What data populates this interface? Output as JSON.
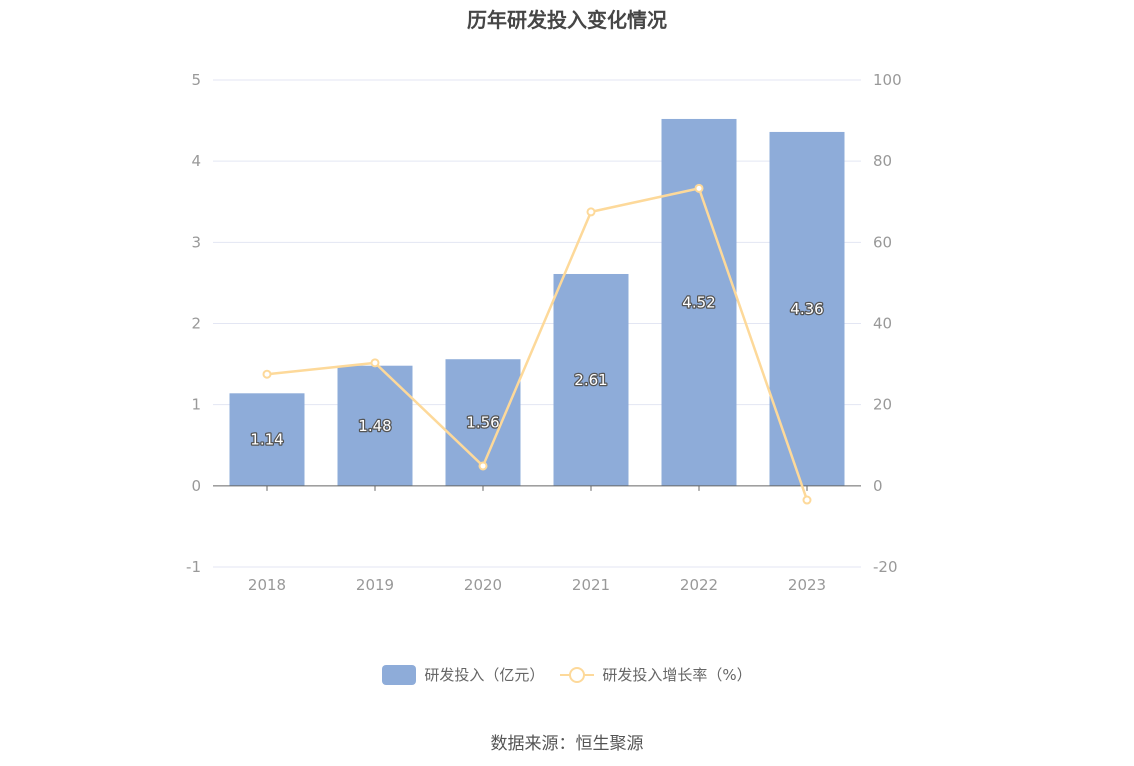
{
  "title": "历年研发投入变化情况",
  "source": "数据来源：恒生聚源",
  "colors": {
    "bar": "#8eacd9",
    "line": "#fdd99a",
    "grid": "#e3e6f3",
    "axis_text": "#999999",
    "axis_line": "#666666",
    "label_text": "#ffffff",
    "label_stroke": "#555555"
  },
  "chart_data": {
    "type": "bar",
    "categories": [
      "2018",
      "2019",
      "2020",
      "2021",
      "2022",
      "2023"
    ],
    "series": [
      {
        "name": "研发投入（亿元）",
        "type": "bar",
        "axis": "left",
        "values": [
          1.14,
          1.48,
          1.56,
          2.61,
          4.52,
          4.36
        ],
        "labels": [
          "1.14",
          "1.48",
          "1.56",
          "2.61",
          "4.52",
          "4.36"
        ]
      },
      {
        "name": "研发投入增长率（%）",
        "type": "line",
        "axis": "right",
        "values": [
          27.5,
          30.3,
          4.9,
          67.5,
          73.3,
          -3.5
        ]
      }
    ],
    "y_left": {
      "min": -1,
      "max": 5,
      "ticks": [
        -1,
        0,
        1,
        2,
        3,
        4,
        5
      ],
      "tick_labels": [
        "-1",
        "0",
        "1",
        "2",
        "3",
        "4",
        "5"
      ]
    },
    "y_right": {
      "min": -20,
      "max": 100,
      "ticks": [
        -20,
        0,
        20,
        40,
        60,
        80,
        100
      ],
      "tick_labels": [
        "-20",
        "0",
        "20",
        "40",
        "60",
        "80",
        "100"
      ]
    },
    "grid": true,
    "legend_position": "bottom-center"
  }
}
